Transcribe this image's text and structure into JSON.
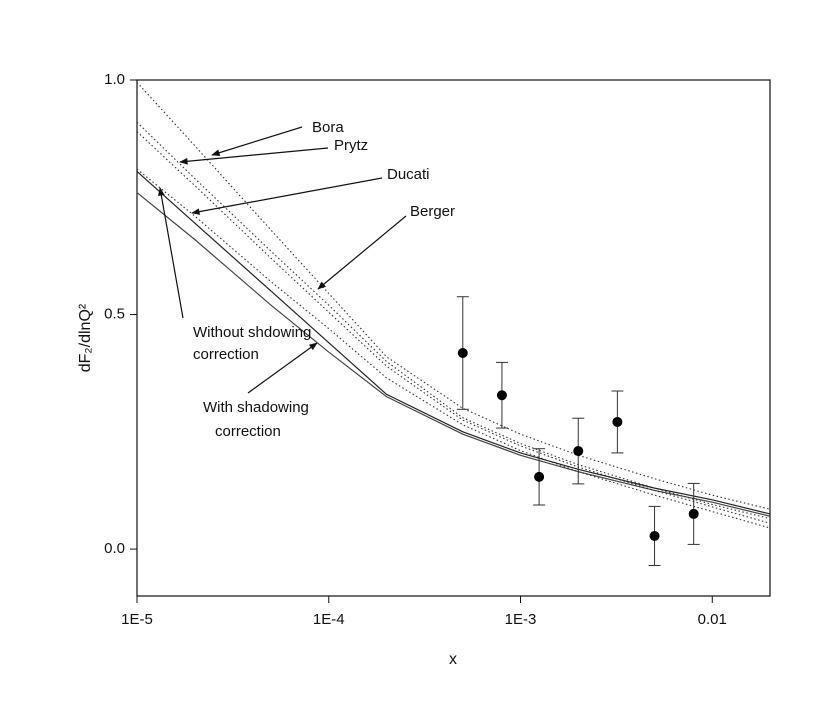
{
  "chart_data": {
    "type": "line",
    "xlabel": "x",
    "ylabel": "dF₂/dlnQ²",
    "xscale": "log",
    "xlim": [
      1e-05,
      0.02
    ],
    "ylim": [
      -0.1,
      1.0
    ],
    "xticks": [
      {
        "value": 1e-05,
        "label": "1E-5"
      },
      {
        "value": 0.0001,
        "label": "1E-4"
      },
      {
        "value": 0.001,
        "label": "1E-3"
      },
      0.01
    ],
    "yticks": [
      {
        "value": 0.0,
        "label": "0.0"
      },
      {
        "value": 0.5,
        "label": "0.5"
      },
      {
        "value": 1.0,
        "label": "1.0"
      }
    ],
    "x": [
      1e-05,
      2e-05,
      5e-05,
      0.0001,
      0.0002,
      0.0005,
      0.001,
      0.002,
      0.005,
      0.01,
      0.02
    ],
    "series": [
      {
        "name": [
          "Without shdowing",
          "correction"
        ],
        "color": "#222222",
        "style": "solid",
        "values": [
          0.805,
          0.695,
          0.55,
          0.44,
          0.33,
          0.25,
          0.205,
          0.17,
          0.13,
          0.105,
          0.075
        ]
      },
      {
        "name": [
          "With shadowing",
          "correction"
        ],
        "color": "#444444",
        "style": "solid",
        "values": [
          0.76,
          0.66,
          0.52,
          0.42,
          0.325,
          0.245,
          0.2,
          0.165,
          0.125,
          0.1,
          0.07
        ]
      },
      {
        "name": [
          "Bora"
        ],
        "color": "#333333",
        "style": "dotted",
        "values": [
          0.995,
          0.86,
          0.68,
          0.545,
          0.41,
          0.3,
          0.245,
          0.2,
          0.15,
          0.115,
          0.085
        ]
      },
      {
        "name": [
          "Prytz"
        ],
        "color": "#333333",
        "style": "dotted",
        "values": [
          0.91,
          0.79,
          0.635,
          0.52,
          0.4,
          0.28,
          0.225,
          0.18,
          0.13,
          0.095,
          0.065
        ]
      },
      {
        "name": [
          "Ducati"
        ],
        "color": "#333333",
        "style": "dotted",
        "values": [
          0.89,
          0.775,
          0.62,
          0.505,
          0.39,
          0.275,
          0.22,
          0.175,
          0.125,
          0.09,
          0.055
        ]
      },
      {
        "name": [
          "Berger"
        ],
        "color": "#333333",
        "style": "dotted",
        "values": [
          0.81,
          0.71,
          0.57,
          0.47,
          0.365,
          0.265,
          0.21,
          0.165,
          0.115,
          0.08,
          0.045
        ]
      }
    ],
    "points": {
      "color": "#000000",
      "x": [
        0.0005,
        0.0008,
        0.00125,
        0.002,
        0.0032,
        0.005,
        0.008
      ],
      "values": [
        0.418,
        0.328,
        0.154,
        0.209,
        0.271,
        0.028,
        0.075
      ],
      "errors": [
        0.12,
        0.07,
        0.06,
        0.07,
        0.066,
        0.063,
        0.065
      ]
    }
  }
}
